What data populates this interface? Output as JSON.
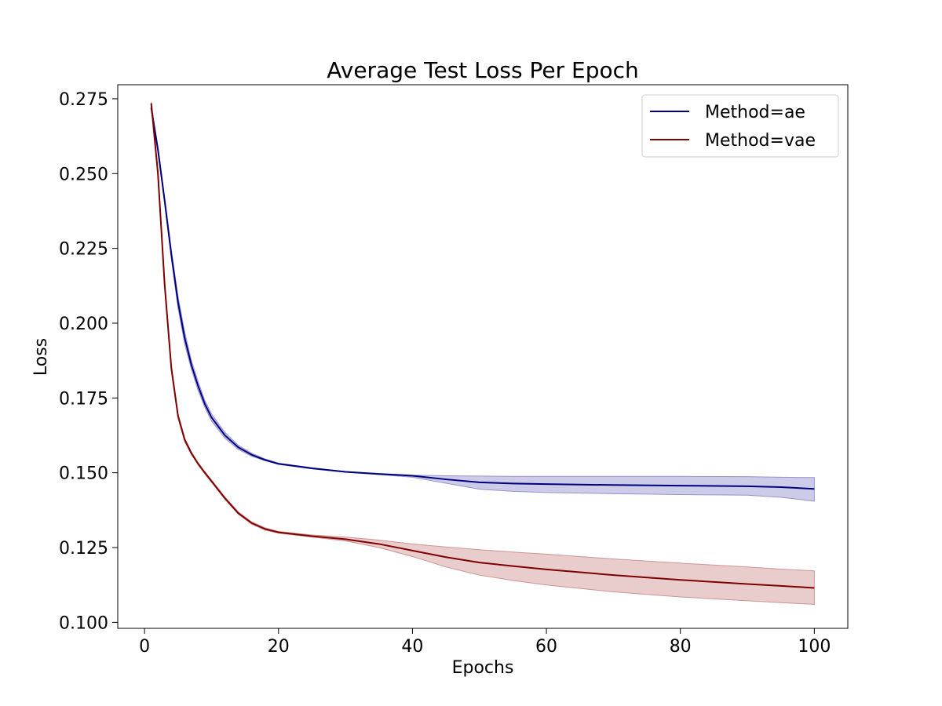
{
  "chart_data": {
    "type": "line",
    "title": "Average Test Loss Per Epoch",
    "xlabel": "Epochs",
    "ylabel": "Loss",
    "xlim": [
      -4,
      105
    ],
    "ylim": [
      0.098,
      0.2797
    ],
    "xticks": [
      0,
      20,
      40,
      60,
      80,
      100
    ],
    "xtick_labels": [
      "0",
      "20",
      "40",
      "60",
      "80",
      "100"
    ],
    "yticks": [
      0.1,
      0.125,
      0.15,
      0.175,
      0.2,
      0.225,
      0.25,
      0.275
    ],
    "ytick_labels": [
      "0.100",
      "0.125",
      "0.150",
      "0.175",
      "0.200",
      "0.225",
      "0.250",
      "0.275"
    ],
    "grid": false,
    "legend_position": "top-right",
    "series": [
      {
        "name": "Method=ae",
        "color": "#00007f",
        "band_color": "#7f7fc8",
        "x": [
          1,
          2,
          3,
          4,
          5,
          6,
          7,
          8,
          9,
          10,
          12,
          14,
          16,
          18,
          20,
          25,
          30,
          35,
          40,
          45,
          50,
          55,
          60,
          70,
          80,
          90,
          95,
          100
        ],
        "y": [
          0.272,
          0.258,
          0.241,
          0.223,
          0.207,
          0.195,
          0.186,
          0.179,
          0.173,
          0.1685,
          0.1625,
          0.1585,
          0.156,
          0.1543,
          0.153,
          0.1515,
          0.1503,
          0.1496,
          0.149,
          0.1478,
          0.1468,
          0.1464,
          0.1462,
          0.1459,
          0.1457,
          0.1455,
          0.1452,
          0.1446
        ],
        "lower": [
          0.2715,
          0.257,
          0.24,
          0.2215,
          0.205,
          0.193,
          0.1845,
          0.1775,
          0.1718,
          0.1673,
          0.1615,
          0.1578,
          0.1555,
          0.154,
          0.1528,
          0.1513,
          0.1502,
          0.1494,
          0.1485,
          0.1465,
          0.1445,
          0.1438,
          0.1434,
          0.143,
          0.1427,
          0.1425,
          0.1418,
          0.1405
        ],
        "upper": [
          0.2725,
          0.259,
          0.242,
          0.2245,
          0.209,
          0.197,
          0.1875,
          0.1805,
          0.1742,
          0.1697,
          0.1635,
          0.1592,
          0.1565,
          0.1546,
          0.1532,
          0.1517,
          0.1504,
          0.1498,
          0.1492,
          0.149,
          0.1489,
          0.1488,
          0.1488,
          0.1488,
          0.1488,
          0.1487,
          0.1485,
          0.1484
        ]
      },
      {
        "name": "Method=vae",
        "color": "#7f0000",
        "band_color": "#c78080",
        "x": [
          1,
          2,
          3,
          4,
          5,
          6,
          7,
          8,
          9,
          10,
          12,
          14,
          16,
          18,
          20,
          25,
          30,
          35,
          40,
          45,
          50,
          55,
          60,
          70,
          80,
          90,
          95,
          100
        ],
        "y": [
          0.2735,
          0.25,
          0.213,
          0.185,
          0.169,
          0.161,
          0.1565,
          0.153,
          0.15,
          0.1472,
          0.1415,
          0.1365,
          0.1332,
          0.1312,
          0.1301,
          0.1288,
          0.1278,
          0.1262,
          0.124,
          0.1218,
          0.12,
          0.1188,
          0.1177,
          0.1158,
          0.1142,
          0.1128,
          0.1122,
          0.1115
        ],
        "lower": [
          0.273,
          0.249,
          0.212,
          0.184,
          0.1682,
          0.1604,
          0.156,
          0.1526,
          0.1496,
          0.1468,
          0.1411,
          0.1361,
          0.1328,
          0.1308,
          0.1298,
          0.1285,
          0.1272,
          0.125,
          0.122,
          0.1185,
          0.1158,
          0.114,
          0.1125,
          0.1102,
          0.1085,
          0.1072,
          0.1066,
          0.106
        ],
        "upper": [
          0.274,
          0.251,
          0.214,
          0.186,
          0.1698,
          0.1616,
          0.157,
          0.1534,
          0.1504,
          0.1476,
          0.1419,
          0.1369,
          0.1336,
          0.1316,
          0.1304,
          0.1292,
          0.1285,
          0.1275,
          0.1262,
          0.1252,
          0.1243,
          0.1235,
          0.1228,
          0.1212,
          0.1198,
          0.1185,
          0.1178,
          0.1172
        ]
      }
    ]
  }
}
